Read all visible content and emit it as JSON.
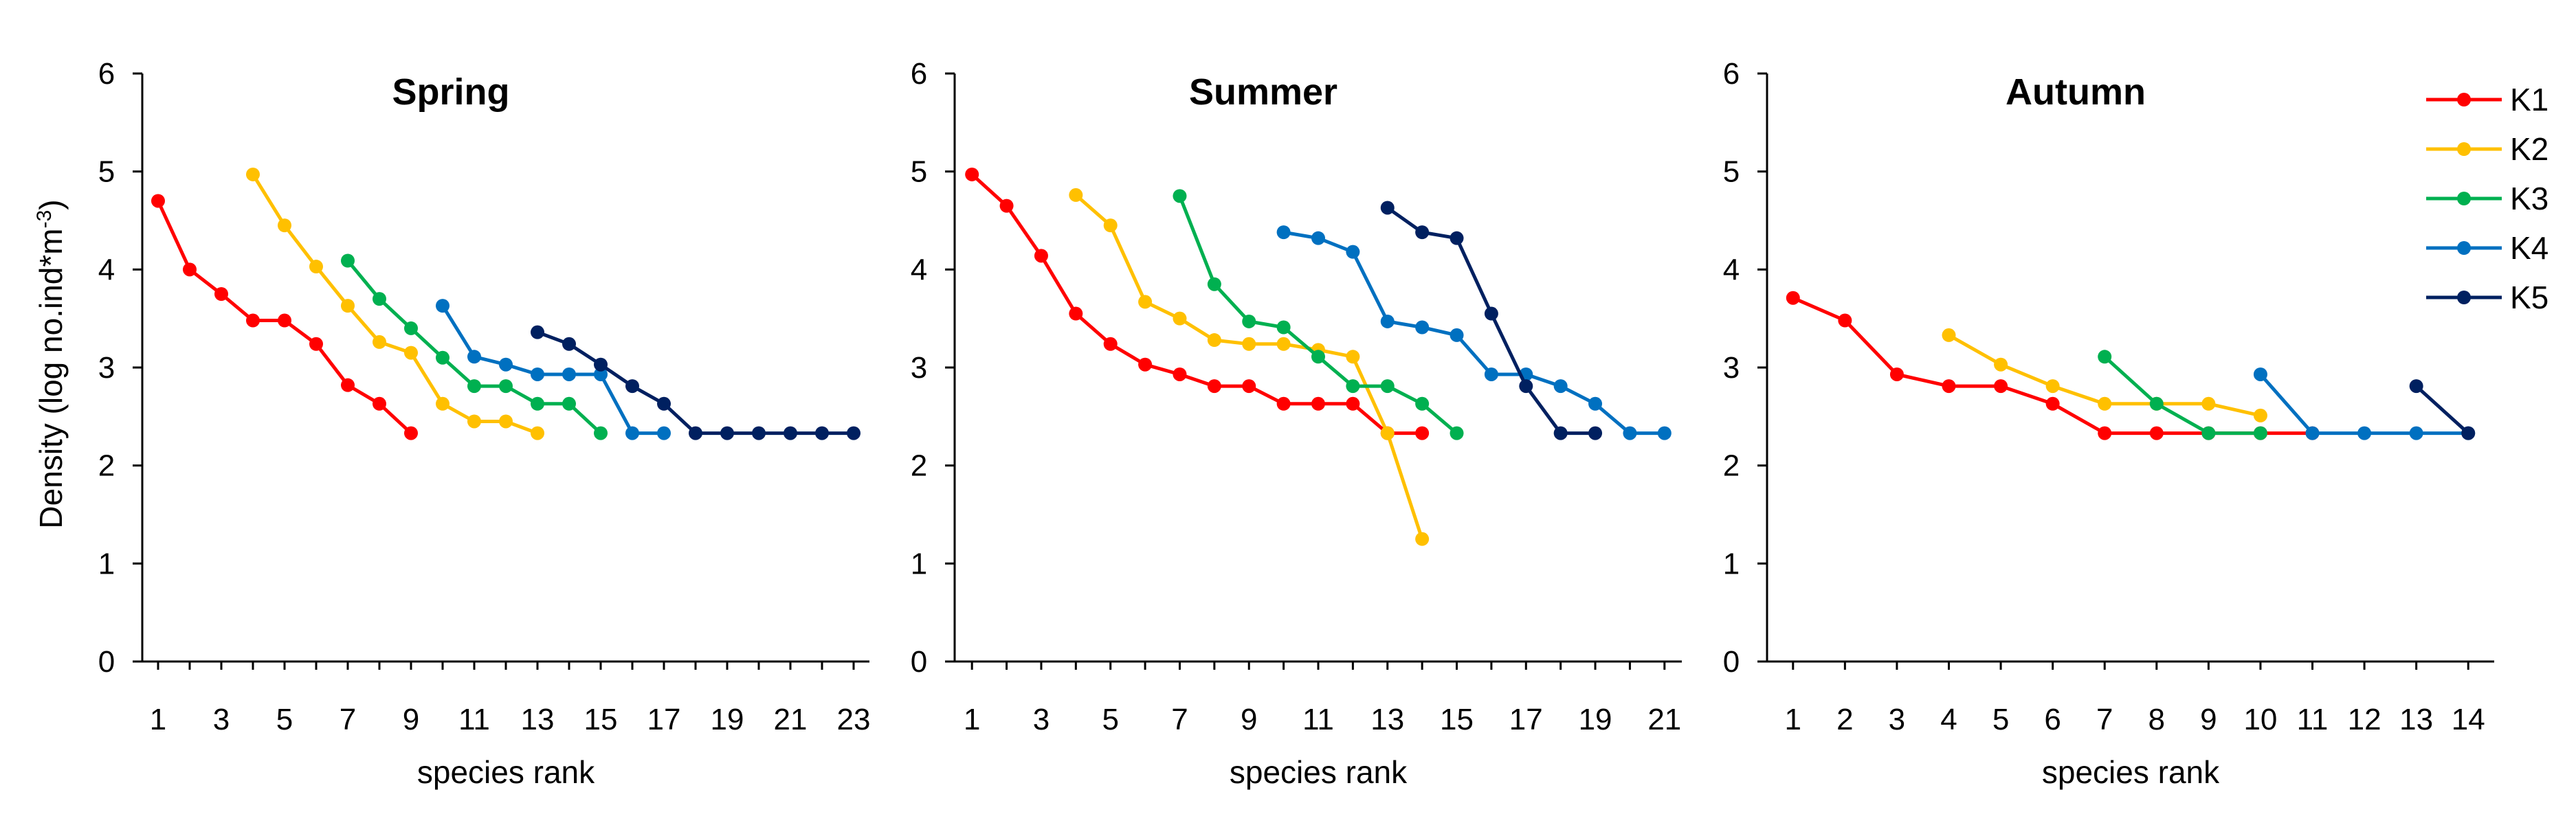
{
  "figure": {
    "ylabel": "Density (log no.ind*m",
    "ylabel_sup": "-3",
    "ylabel_close": ")"
  },
  "legend": {
    "placement": "top-right",
    "entries": [
      {
        "name": "K1",
        "color": "#ff0000"
      },
      {
        "name": "K2",
        "color": "#ffc000"
      },
      {
        "name": "K3",
        "color": "#00b050"
      },
      {
        "name": "K4",
        "color": "#0070c0"
      },
      {
        "name": "K5",
        "color": "#002060"
      }
    ]
  },
  "chart_data": [
    {
      "type": "line",
      "title": "Spring",
      "xlabel": "species rank",
      "ylabel": "Density (log no.ind*m-3)",
      "xlim": [
        0.5,
        23.5
      ],
      "ylim": [
        0,
        6
      ],
      "xticks": [
        1,
        3,
        5,
        7,
        9,
        11,
        13,
        15,
        17,
        19,
        21,
        23
      ],
      "yticks": [
        0,
        1,
        2,
        3,
        4,
        5,
        6
      ],
      "series": [
        {
          "name": "K1",
          "color": "#ff0000",
          "x": [
            1,
            2,
            3,
            4,
            5,
            6,
            7,
            8,
            9
          ],
          "y": [
            4.7,
            4.0,
            3.75,
            3.48,
            3.48,
            3.24,
            2.82,
            2.63,
            2.33
          ]
        },
        {
          "name": "K2",
          "color": "#ffc000",
          "x": [
            4,
            5,
            6,
            7,
            8,
            9,
            10,
            11,
            12,
            13
          ],
          "y": [
            4.97,
            4.45,
            4.03,
            3.63,
            3.26,
            3.15,
            2.63,
            2.45,
            2.45,
            2.33
          ]
        },
        {
          "name": "K3",
          "color": "#00b050",
          "x": [
            7,
            8,
            9,
            10,
            11,
            12,
            13,
            14,
            15
          ],
          "y": [
            4.09,
            3.7,
            3.4,
            3.1,
            2.81,
            2.81,
            2.63,
            2.63,
            2.33
          ]
        },
        {
          "name": "K4",
          "color": "#0070c0",
          "x": [
            10,
            11,
            12,
            13,
            14,
            15,
            16,
            17
          ],
          "y": [
            3.63,
            3.11,
            3.03,
            2.93,
            2.93,
            2.93,
            2.33,
            2.33
          ]
        },
        {
          "name": "K5",
          "color": "#002060",
          "x": [
            13,
            14,
            15,
            16,
            17,
            18,
            19,
            20,
            21,
            22,
            23
          ],
          "y": [
            3.36,
            3.24,
            3.03,
            2.81,
            2.63,
            2.33,
            2.33,
            2.33,
            2.33,
            2.33,
            2.33
          ]
        }
      ]
    },
    {
      "type": "line",
      "title": "Summer",
      "xlabel": "species rank",
      "ylabel": "Density (log no.ind*m-3)",
      "xlim": [
        0.5,
        21.5
      ],
      "ylim": [
        0,
        6
      ],
      "xticks": [
        1,
        3,
        5,
        7,
        9,
        11,
        13,
        15,
        17,
        19,
        21
      ],
      "yticks": [
        0,
        1,
        2,
        3,
        4,
        5,
        6
      ],
      "series": [
        {
          "name": "K1",
          "color": "#ff0000",
          "x": [
            1,
            2,
            3,
            4,
            5,
            6,
            7,
            8,
            9,
            10,
            11,
            12,
            13,
            14
          ],
          "y": [
            4.97,
            4.65,
            4.14,
            3.55,
            3.24,
            3.03,
            2.93,
            2.81,
            2.81,
            2.63,
            2.63,
            2.63,
            2.33,
            2.33
          ]
        },
        {
          "name": "K2",
          "color": "#ffc000",
          "x": [
            4,
            5,
            6,
            7,
            8,
            9,
            10,
            11,
            12,
            13,
            14
          ],
          "y": [
            4.76,
            4.45,
            3.67,
            3.5,
            3.28,
            3.24,
            3.24,
            3.18,
            3.11,
            2.33,
            1.25
          ]
        },
        {
          "name": "K3",
          "color": "#00b050",
          "x": [
            7,
            8,
            9,
            10,
            11,
            12,
            13,
            14,
            15
          ],
          "y": [
            4.75,
            3.85,
            3.47,
            3.41,
            3.11,
            2.81,
            2.81,
            2.63,
            2.33
          ]
        },
        {
          "name": "K4",
          "color": "#0070c0",
          "x": [
            10,
            11,
            12,
            13,
            14,
            15,
            16,
            17,
            18,
            19,
            20,
            21
          ],
          "y": [
            4.38,
            4.32,
            4.18,
            3.47,
            3.41,
            3.33,
            2.93,
            2.93,
            2.81,
            2.63,
            2.33,
            2.33
          ]
        },
        {
          "name": "K5",
          "color": "#002060",
          "x": [
            13,
            14,
            15,
            16,
            17,
            18,
            19
          ],
          "y": [
            4.63,
            4.38,
            4.32,
            3.55,
            2.81,
            2.33,
            2.33
          ]
        }
      ]
    },
    {
      "type": "line",
      "title": "Autumn",
      "xlabel": "species rank",
      "ylabel": "Density (log no.ind*m-3)",
      "xlim": [
        0.5,
        14.5
      ],
      "ylim": [
        0,
        6
      ],
      "xticks": [
        1,
        2,
        3,
        4,
        5,
        6,
        7,
        8,
        9,
        10,
        11,
        12,
        13,
        14
      ],
      "yticks": [
        0,
        1,
        2,
        3,
        4,
        5,
        6
      ],
      "series": [
        {
          "name": "K1",
          "color": "#ff0000",
          "x": [
            1,
            2,
            3,
            4,
            5,
            6,
            7,
            8,
            9,
            10,
            11
          ],
          "y": [
            3.71,
            3.48,
            2.93,
            2.81,
            2.81,
            2.63,
            2.33,
            2.33,
            2.33,
            2.33,
            2.33
          ]
        },
        {
          "name": "K2",
          "color": "#ffc000",
          "x": [
            4,
            5,
            6,
            7,
            8,
            9,
            10
          ],
          "y": [
            3.33,
            3.03,
            2.81,
            2.63,
            2.63,
            2.63,
            2.51
          ]
        },
        {
          "name": "K3",
          "color": "#00b050",
          "x": [
            7,
            8,
            9,
            10
          ],
          "y": [
            3.11,
            2.63,
            2.33,
            2.33
          ]
        },
        {
          "name": "K4",
          "color": "#0070c0",
          "x": [
            10,
            11,
            12,
            13,
            14
          ],
          "y": [
            2.93,
            2.33,
            2.33,
            2.33,
            2.33
          ]
        },
        {
          "name": "K5",
          "color": "#002060",
          "x": [
            13,
            14
          ],
          "y": [
            2.81,
            2.33
          ]
        }
      ]
    }
  ]
}
